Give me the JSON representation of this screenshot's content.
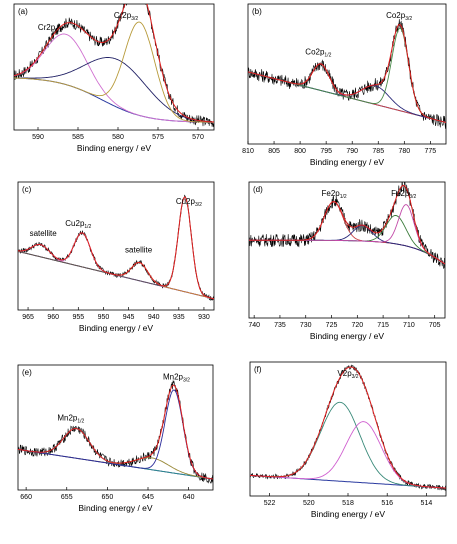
{
  "chart_data": [
    {
      "type": "line",
      "panel_label": "(a)",
      "xlabel": "Binding energy / eV",
      "xlim": [
        593,
        568
      ],
      "xticks": [
        590,
        585,
        580,
        575,
        570
      ],
      "annotations": [
        {
          "main": "Cr2p",
          "sub": "1/2",
          "x": 588.5
        },
        {
          "main": "Cr2p",
          "sub": "3/2",
          "x": 579.0
        }
      ],
      "peaks": [
        {
          "name": "Cr2p1/2",
          "center": 586.5,
          "height": 0.42,
          "width": 2.6,
          "color": "#d070d0"
        },
        {
          "name": "Cr2p1/2 b",
          "center": 580.0,
          "height": 0.4,
          "width": 3.8,
          "color": "#222266"
        },
        {
          "name": "Cr2p3/2",
          "center": 577.3,
          "height": 0.78,
          "width": 1.9,
          "color": "#b79a3a"
        }
      ],
      "background": {
        "start": 0.4,
        "end": 0.02,
        "mid": 589.5
      },
      "noise": 0.045
    },
    {
      "type": "line",
      "panel_label": "(b)",
      "xlabel": "Binding energy / eV",
      "xlim": [
        810,
        772
      ],
      "xticks": [
        810,
        805,
        800,
        795,
        790,
        785,
        780,
        775
      ],
      "annotations": [
        {
          "main": "Co2p",
          "sub": "1/2",
          "x": 796.5
        },
        {
          "main": "Co2p",
          "sub": "3/2",
          "x": 781.0
        }
      ],
      "peaks": [
        {
          "name": "Co2p1/2",
          "center": 796.0,
          "height": 0.2,
          "width": 1.6,
          "color": "#cc4444"
        },
        {
          "name": "sat",
          "center": 785.5,
          "height": 0.14,
          "width": 2.6,
          "color": "#2a2a7a"
        },
        {
          "name": "Co2p3/2",
          "center": 780.8,
          "height": 0.62,
          "width": 1.6,
          "color": "#4a8a4a"
        }
      ],
      "background": {
        "start": 0.5,
        "end": 0.12,
        "mid": 0
      },
      "noise": 0.05
    },
    {
      "type": "line",
      "panel_label": "(c)",
      "xlabel": "Binding energy / eV",
      "xlim": [
        967,
        928
      ],
      "xticks": [
        965,
        960,
        955,
        950,
        945,
        940,
        935,
        930
      ],
      "annotations": [
        {
          "main": "satellite",
          "sub": "",
          "x": 962.0
        },
        {
          "main": "Cu2p",
          "sub": "1/2",
          "x": 955.0
        },
        {
          "main": "satellite",
          "sub": "",
          "x": 943.0
        },
        {
          "main": "Cu2p",
          "sub": "3/2",
          "x": 933.0
        }
      ],
      "peaks": [
        {
          "name": "sat1",
          "center": 962.5,
          "height": 0.1,
          "width": 1.8,
          "color": "#d070d0"
        },
        {
          "name": "Cu2p1/2",
          "center": 954.2,
          "height": 0.28,
          "width": 1.6,
          "color": "#d070d0"
        },
        {
          "name": "sat2",
          "center": 942.8,
          "height": 0.15,
          "width": 1.6,
          "color": "#c08030"
        },
        {
          "name": "Cu2p3/2",
          "center": 933.8,
          "height": 0.78,
          "width": 1.3,
          "color": "#555555"
        }
      ],
      "background": {
        "start": 0.44,
        "end": 0.05,
        "mid": 0
      },
      "noise": 0.02
    },
    {
      "type": "line",
      "panel_label": "(d)",
      "xlabel": "Binding energy / eV",
      "xlim": [
        741,
        703
      ],
      "xticks": [
        740,
        735,
        730,
        725,
        720,
        715,
        710,
        705
      ],
      "annotations": [
        {
          "main": "Fe2p",
          "sub": "1/2",
          "x": 724.5
        },
        {
          "main": "Fe2p",
          "sub": "3/2",
          "x": 711.0
        }
      ],
      "peaks": [
        {
          "name": "Fe2p1/2",
          "center": 724.6,
          "height": 0.3,
          "width": 1.8,
          "color": "#cc4444"
        },
        {
          "name": "sat",
          "center": 719.0,
          "height": 0.12,
          "width": 1.8,
          "color": "#2a2a7a"
        },
        {
          "name": "Fe2p3/2 a",
          "center": 712.5,
          "height": 0.22,
          "width": 1.9,
          "color": "#3a7a3a"
        },
        {
          "name": "Fe2p3/2 b",
          "center": 710.5,
          "height": 0.32,
          "width": 1.5,
          "color": "#c24aa8"
        }
      ],
      "background": {
        "start": 0.56,
        "end": 0.05,
        "mid": 712
      },
      "noise": 0.05
    },
    {
      "type": "line",
      "panel_label": "(e)",
      "xlabel": "Binding energy / eV",
      "xlim": [
        661,
        637
      ],
      "xticks": [
        660,
        655,
        650,
        645,
        640
      ],
      "annotations": [
        {
          "main": "Mn2p",
          "sub": "1/2",
          "x": 654.5
        },
        {
          "main": "Mn2p",
          "sub": "3/2",
          "x": 641.5
        }
      ],
      "peaks": [
        {
          "name": "Mn2p1/2",
          "center": 653.8,
          "height": 0.25,
          "width": 1.6,
          "color": "#2a8a8a"
        },
        {
          "name": "sat",
          "center": 644.5,
          "height": 0.1,
          "width": 2.0,
          "color": "#9a8a3a"
        },
        {
          "name": "Mn2p3/2",
          "center": 641.8,
          "height": 0.7,
          "width": 1.1,
          "color": "#2a2a9a"
        }
      ],
      "background": {
        "start": 0.3,
        "end": 0.05,
        "mid": 0
      },
      "noise": 0.04
    },
    {
      "type": "line",
      "panel_label": "(f)",
      "xlabel": "Binding energy / eV",
      "xlim": [
        523,
        513
      ],
      "xticks": [
        522,
        520,
        518,
        516,
        514
      ],
      "annotations": [
        {
          "main": "V2p",
          "sub": "3/2",
          "x": 518.0
        }
      ],
      "peaks": [
        {
          "name": "V2p3/2 a",
          "center": 518.4,
          "height": 0.62,
          "width": 1.0,
          "color": "#3a8a7a"
        },
        {
          "name": "V2p3/2 b",
          "center": 517.2,
          "height": 0.48,
          "width": 0.9,
          "color": "#d060d0"
        }
      ],
      "background": {
        "start": 0.12,
        "end": 0.02,
        "mid": 0
      },
      "noise": 0.02
    }
  ]
}
